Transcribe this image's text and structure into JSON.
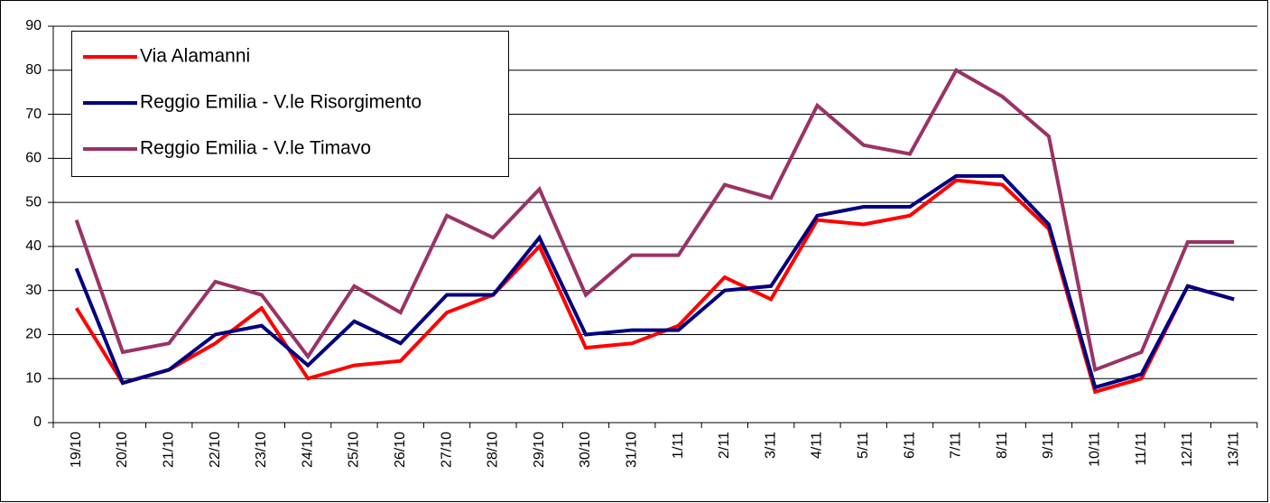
{
  "chart_data": {
    "type": "line",
    "categories": [
      "19/10",
      "20/10",
      "21/10",
      "22/10",
      "23/10",
      "24/10",
      "25/10",
      "26/10",
      "27/10",
      "28/10",
      "29/10",
      "30/10",
      "31/10",
      "1/11",
      "2/11",
      "3/11",
      "4/11",
      "5/11",
      "6/11",
      "7/11",
      "8/11",
      "9/11",
      "10/11",
      "11/11",
      "12/11",
      "13/11"
    ],
    "series": [
      {
        "name": "Via Alamanni",
        "color": "#ff0000",
        "values": [
          26,
          9,
          12,
          18,
          26,
          10,
          13,
          14,
          25,
          29,
          40,
          17,
          18,
          22,
          33,
          28,
          46,
          45,
          47,
          55,
          54,
          44,
          7,
          10,
          31,
          28
        ]
      },
      {
        "name": "Reggio Emilia - V.le Risorgimento",
        "color": "#000080",
        "values": [
          35,
          9,
          12,
          20,
          22,
          13,
          23,
          18,
          29,
          29,
          42,
          20,
          21,
          21,
          30,
          31,
          47,
          49,
          49,
          56,
          56,
          45,
          8,
          11,
          31,
          28
        ]
      },
      {
        "name": "Reggio Emilia - V.le Timavo",
        "color": "#993366",
        "values": [
          46,
          16,
          18,
          32,
          29,
          15,
          31,
          25,
          47,
          42,
          53,
          29,
          38,
          38,
          54,
          51,
          72,
          63,
          61,
          80,
          74,
          65,
          12,
          16,
          41,
          41
        ]
      }
    ],
    "ylim": [
      0,
      90
    ],
    "yticks": [
      0,
      10,
      20,
      30,
      40,
      50,
      60,
      70,
      80,
      90
    ],
    "grid": true,
    "legend": "top-left"
  }
}
